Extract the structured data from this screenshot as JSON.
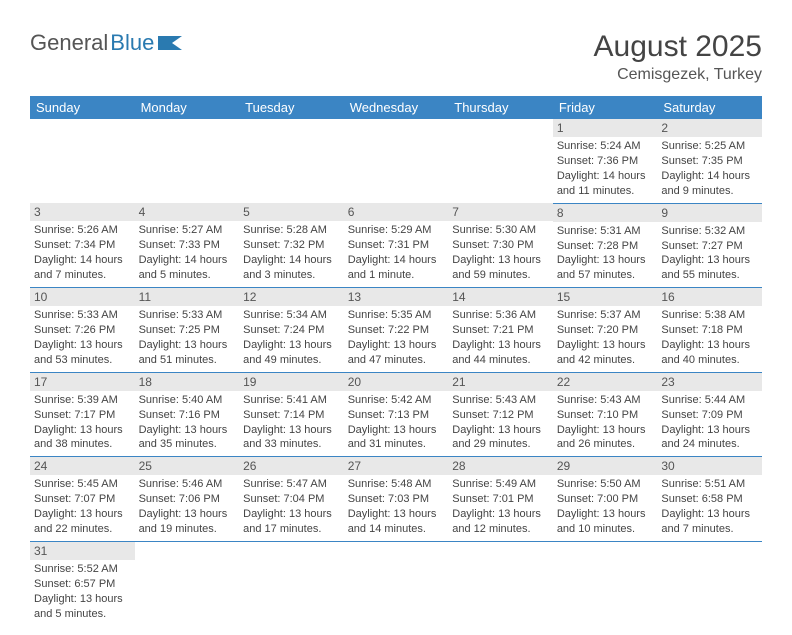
{
  "logo": {
    "text1": "General",
    "text2": "Blue"
  },
  "title": "August 2025",
  "location": "Cemisgezek, Turkey",
  "colors": {
    "header_bg": "#3b85c4",
    "header_text": "#ffffff",
    "daynum_bg": "#e8e8e8",
    "cell_border": "#3b85c4",
    "text": "#444444",
    "logo_gray": "#555555",
    "logo_blue": "#2a7ab0",
    "background": "#ffffff"
  },
  "fonts": {
    "family": "Arial",
    "title_size": 30,
    "location_size": 16,
    "header_size": 13,
    "cell_size": 11,
    "daynum_size": 12
  },
  "weekdays": [
    "Sunday",
    "Monday",
    "Tuesday",
    "Wednesday",
    "Thursday",
    "Friday",
    "Saturday"
  ],
  "grid": {
    "rows": 6,
    "cols": 7
  },
  "days": [
    null,
    null,
    null,
    null,
    null,
    {
      "n": "1",
      "sunrise": "5:24 AM",
      "sunset": "7:36 PM",
      "daylight": "14 hours and 11 minutes."
    },
    {
      "n": "2",
      "sunrise": "5:25 AM",
      "sunset": "7:35 PM",
      "daylight": "14 hours and 9 minutes."
    },
    {
      "n": "3",
      "sunrise": "5:26 AM",
      "sunset": "7:34 PM",
      "daylight": "14 hours and 7 minutes."
    },
    {
      "n": "4",
      "sunrise": "5:27 AM",
      "sunset": "7:33 PM",
      "daylight": "14 hours and 5 minutes."
    },
    {
      "n": "5",
      "sunrise": "5:28 AM",
      "sunset": "7:32 PM",
      "daylight": "14 hours and 3 minutes."
    },
    {
      "n": "6",
      "sunrise": "5:29 AM",
      "sunset": "7:31 PM",
      "daylight": "14 hours and 1 minute."
    },
    {
      "n": "7",
      "sunrise": "5:30 AM",
      "sunset": "7:30 PM",
      "daylight": "13 hours and 59 minutes."
    },
    {
      "n": "8",
      "sunrise": "5:31 AM",
      "sunset": "7:28 PM",
      "daylight": "13 hours and 57 minutes."
    },
    {
      "n": "9",
      "sunrise": "5:32 AM",
      "sunset": "7:27 PM",
      "daylight": "13 hours and 55 minutes."
    },
    {
      "n": "10",
      "sunrise": "5:33 AM",
      "sunset": "7:26 PM",
      "daylight": "13 hours and 53 minutes."
    },
    {
      "n": "11",
      "sunrise": "5:33 AM",
      "sunset": "7:25 PM",
      "daylight": "13 hours and 51 minutes."
    },
    {
      "n": "12",
      "sunrise": "5:34 AM",
      "sunset": "7:24 PM",
      "daylight": "13 hours and 49 minutes."
    },
    {
      "n": "13",
      "sunrise": "5:35 AM",
      "sunset": "7:22 PM",
      "daylight": "13 hours and 47 minutes."
    },
    {
      "n": "14",
      "sunrise": "5:36 AM",
      "sunset": "7:21 PM",
      "daylight": "13 hours and 44 minutes."
    },
    {
      "n": "15",
      "sunrise": "5:37 AM",
      "sunset": "7:20 PM",
      "daylight": "13 hours and 42 minutes."
    },
    {
      "n": "16",
      "sunrise": "5:38 AM",
      "sunset": "7:18 PM",
      "daylight": "13 hours and 40 minutes."
    },
    {
      "n": "17",
      "sunrise": "5:39 AM",
      "sunset": "7:17 PM",
      "daylight": "13 hours and 38 minutes."
    },
    {
      "n": "18",
      "sunrise": "5:40 AM",
      "sunset": "7:16 PM",
      "daylight": "13 hours and 35 minutes."
    },
    {
      "n": "19",
      "sunrise": "5:41 AM",
      "sunset": "7:14 PM",
      "daylight": "13 hours and 33 minutes."
    },
    {
      "n": "20",
      "sunrise": "5:42 AM",
      "sunset": "7:13 PM",
      "daylight": "13 hours and 31 minutes."
    },
    {
      "n": "21",
      "sunrise": "5:43 AM",
      "sunset": "7:12 PM",
      "daylight": "13 hours and 29 minutes."
    },
    {
      "n": "22",
      "sunrise": "5:43 AM",
      "sunset": "7:10 PM",
      "daylight": "13 hours and 26 minutes."
    },
    {
      "n": "23",
      "sunrise": "5:44 AM",
      "sunset": "7:09 PM",
      "daylight": "13 hours and 24 minutes."
    },
    {
      "n": "24",
      "sunrise": "5:45 AM",
      "sunset": "7:07 PM",
      "daylight": "13 hours and 22 minutes."
    },
    {
      "n": "25",
      "sunrise": "5:46 AM",
      "sunset": "7:06 PM",
      "daylight": "13 hours and 19 minutes."
    },
    {
      "n": "26",
      "sunrise": "5:47 AM",
      "sunset": "7:04 PM",
      "daylight": "13 hours and 17 minutes."
    },
    {
      "n": "27",
      "sunrise": "5:48 AM",
      "sunset": "7:03 PM",
      "daylight": "13 hours and 14 minutes."
    },
    {
      "n": "28",
      "sunrise": "5:49 AM",
      "sunset": "7:01 PM",
      "daylight": "13 hours and 12 minutes."
    },
    {
      "n": "29",
      "sunrise": "5:50 AM",
      "sunset": "7:00 PM",
      "daylight": "13 hours and 10 minutes."
    },
    {
      "n": "30",
      "sunrise": "5:51 AM",
      "sunset": "6:58 PM",
      "daylight": "13 hours and 7 minutes."
    },
    {
      "n": "31",
      "sunrise": "5:52 AM",
      "sunset": "6:57 PM",
      "daylight": "13 hours and 5 minutes."
    },
    null,
    null,
    null,
    null,
    null,
    null
  ],
  "labels": {
    "sunrise": "Sunrise:",
    "sunset": "Sunset:",
    "daylight": "Daylight:"
  }
}
